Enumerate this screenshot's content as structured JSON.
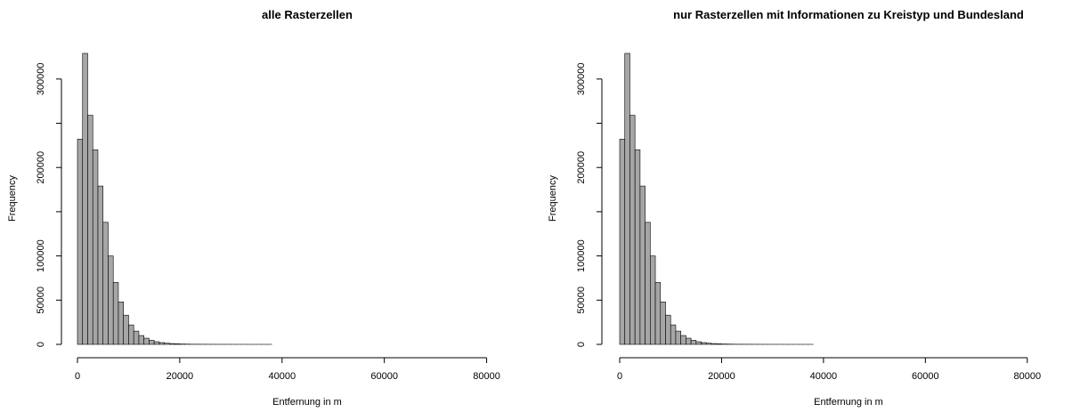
{
  "chart_data": [
    {
      "type": "bar",
      "title": "alle Rasterzellen",
      "xlabel": "Entfernung in m",
      "ylabel": "Frequency",
      "xlim": [
        0,
        90000
      ],
      "ylim": [
        0,
        330000
      ],
      "bin_width": 1000,
      "x_ticks": [
        0,
        20000,
        40000,
        60000,
        80000
      ],
      "y_ticks": [
        0,
        50000,
        100000,
        150000,
        200000,
        250000,
        300000
      ],
      "y_tick_labels": [
        "0",
        "50000",
        "100000",
        "",
        "200000",
        "",
        "300000"
      ],
      "x_tick_labels": [
        "0",
        "20000",
        "40000",
        "60000",
        "80000"
      ],
      "values": [
        232000,
        329000,
        259000,
        220000,
        179000,
        138000,
        100000,
        70000,
        48000,
        33000,
        22000,
        15000,
        10000,
        7000,
        4600,
        3000,
        2000,
        1300,
        900,
        600,
        400,
        300,
        200,
        150,
        120,
        100,
        80,
        60,
        50,
        40,
        30,
        25,
        20,
        15,
        12,
        10,
        8,
        6,
        5,
        4,
        3,
        3,
        2,
        2,
        2,
        1,
        1,
        1,
        1,
        1,
        1,
        1,
        1,
        1,
        1,
        1,
        1,
        1,
        1,
        1,
        1,
        1,
        1,
        1,
        1,
        1,
        1,
        1,
        1,
        1,
        1,
        1,
        1,
        1,
        1,
        1,
        1,
        1,
        1,
        1,
        1,
        1,
        1,
        1,
        1,
        1,
        1,
        1,
        1,
        1
      ]
    },
    {
      "type": "bar",
      "title": "nur Rasterzellen mit Informationen zu Kreistyp und Bundesland",
      "xlabel": "Entfernung in m",
      "ylabel": "Frequency",
      "xlim": [
        0,
        90000
      ],
      "ylim": [
        0,
        330000
      ],
      "bin_width": 1000,
      "x_ticks": [
        0,
        20000,
        40000,
        60000,
        80000
      ],
      "y_ticks": [
        0,
        50000,
        100000,
        150000,
        200000,
        250000,
        300000
      ],
      "y_tick_labels": [
        "0",
        "50000",
        "100000",
        "",
        "200000",
        "",
        "300000"
      ],
      "x_tick_labels": [
        "0",
        "20000",
        "40000",
        "60000",
        "80000"
      ],
      "values": [
        232000,
        329000,
        259000,
        220000,
        179000,
        138000,
        100000,
        70000,
        48000,
        33000,
        22000,
        15000,
        10000,
        7000,
        4600,
        3000,
        2000,
        1300,
        900,
        600,
        400,
        300,
        200,
        150,
        120,
        100,
        80,
        60,
        50,
        40,
        30,
        25,
        20,
        15,
        12,
        10,
        8,
        6,
        5,
        4,
        3,
        3,
        2,
        2,
        2,
        1,
        1,
        1,
        1,
        1,
        1,
        1,
        1,
        1,
        1,
        1,
        1,
        1,
        1,
        1,
        1,
        1,
        1,
        1,
        1,
        1,
        1,
        1,
        1,
        1,
        1,
        1,
        1,
        1,
        1,
        1,
        1,
        1,
        1,
        1,
        1,
        1,
        1,
        1,
        1,
        1,
        1,
        1,
        1,
        1
      ]
    }
  ]
}
